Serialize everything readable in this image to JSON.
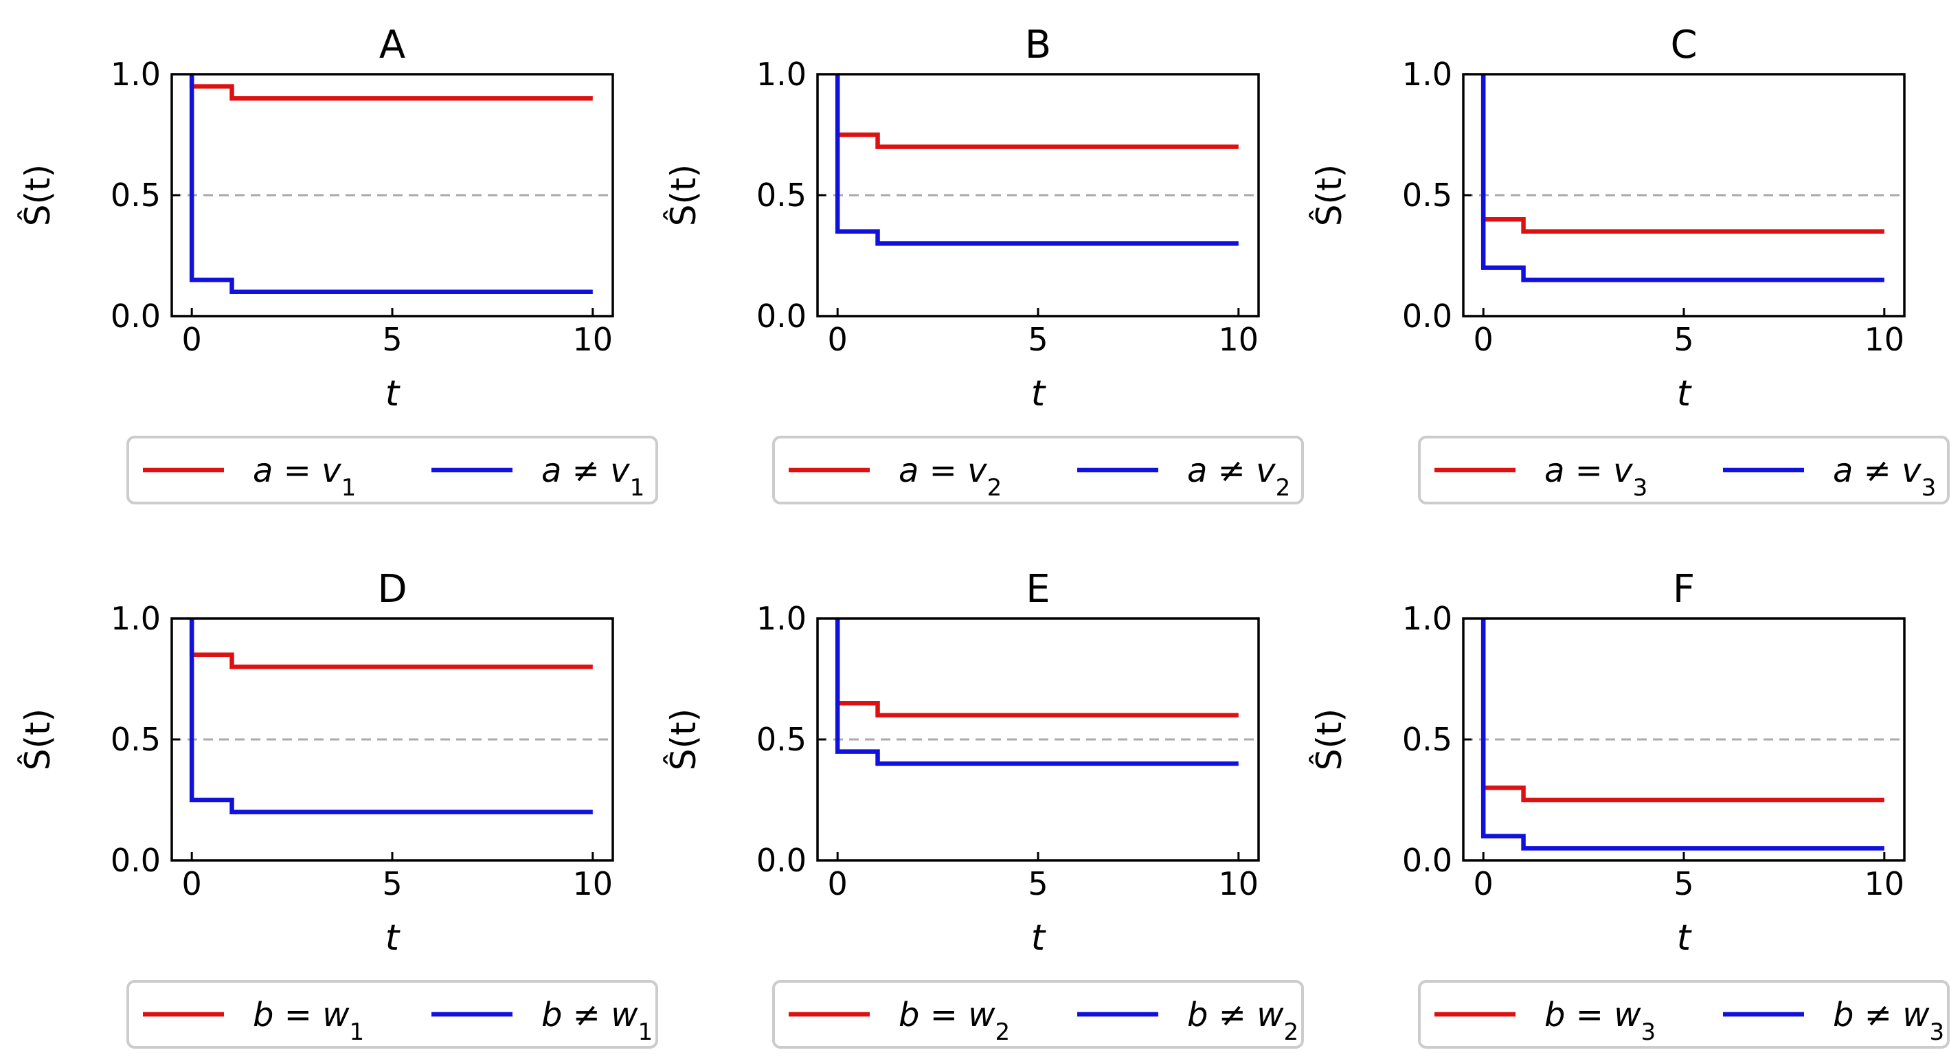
{
  "chart_data": [
    {
      "type": "line",
      "step": true,
      "title": "A",
      "xlabel": "t",
      "ylabel": "Ŝ(t)",
      "xlim": [
        -0.5,
        10.5
      ],
      "ylim": [
        0,
        1
      ],
      "xticks": [
        0,
        5,
        10
      ],
      "xtick_labels": [
        "0",
        "5",
        "10"
      ],
      "yticks": [
        0,
        0.5,
        1
      ],
      "ytick_labels": [
        "0.0",
        "0.5",
        "1.0"
      ],
      "reference_line": 0.5,
      "legend_position": "below",
      "series": [
        {
          "name": "a = v1",
          "legend_var": "a",
          "legend_op": "=",
          "legend_base": "v",
          "legend_sub": "1",
          "color": "#dd1111",
          "x": [
            0,
            1,
            10
          ],
          "y": [
            0.95,
            0.9,
            0.9
          ]
        },
        {
          "name": "a ≠ v1",
          "legend_var": "a",
          "legend_op": "≠",
          "legend_base": "v",
          "legend_sub": "1",
          "color": "#1111dd",
          "x": [
            0,
            1,
            10
          ],
          "y": [
            0.15,
            0.1,
            0.1
          ]
        }
      ]
    },
    {
      "type": "line",
      "step": true,
      "title": "B",
      "xlabel": "t",
      "ylabel": "Ŝ(t)",
      "xlim": [
        -0.5,
        10.5
      ],
      "ylim": [
        0,
        1
      ],
      "xticks": [
        0,
        5,
        10
      ],
      "xtick_labels": [
        "0",
        "5",
        "10"
      ],
      "yticks": [
        0,
        0.5,
        1
      ],
      "ytick_labels": [
        "0.0",
        "0.5",
        "1.0"
      ],
      "reference_line": 0.5,
      "legend_position": "below",
      "series": [
        {
          "name": "a = v2",
          "legend_var": "a",
          "legend_op": "=",
          "legend_base": "v",
          "legend_sub": "2",
          "color": "#dd1111",
          "x": [
            0,
            1,
            10
          ],
          "y": [
            0.75,
            0.7,
            0.7
          ]
        },
        {
          "name": "a ≠ v2",
          "legend_var": "a",
          "legend_op": "≠",
          "legend_base": "v",
          "legend_sub": "2",
          "color": "#1111dd",
          "x": [
            0,
            1,
            10
          ],
          "y": [
            0.35,
            0.3,
            0.3
          ]
        }
      ]
    },
    {
      "type": "line",
      "step": true,
      "title": "C",
      "xlabel": "t",
      "ylabel": "Ŝ(t)",
      "xlim": [
        -0.5,
        10.5
      ],
      "ylim": [
        0,
        1
      ],
      "xticks": [
        0,
        5,
        10
      ],
      "xtick_labels": [
        "0",
        "5",
        "10"
      ],
      "yticks": [
        0,
        0.5,
        1
      ],
      "ytick_labels": [
        "0.0",
        "0.5",
        "1.0"
      ],
      "reference_line": 0.5,
      "legend_position": "below",
      "series": [
        {
          "name": "a = v3",
          "legend_var": "a",
          "legend_op": "=",
          "legend_base": "v",
          "legend_sub": "3",
          "color": "#dd1111",
          "x": [
            0,
            1,
            10
          ],
          "y": [
            0.4,
            0.35,
            0.35
          ]
        },
        {
          "name": "a ≠ v3",
          "legend_var": "a",
          "legend_op": "≠",
          "legend_base": "v",
          "legend_sub": "3",
          "color": "#1111dd",
          "x": [
            0,
            1,
            10
          ],
          "y": [
            0.2,
            0.15,
            0.15
          ]
        }
      ]
    },
    {
      "type": "line",
      "step": true,
      "title": "D",
      "xlabel": "t",
      "ylabel": "Ŝ(t)",
      "xlim": [
        -0.5,
        10.5
      ],
      "ylim": [
        0,
        1
      ],
      "xticks": [
        0,
        5,
        10
      ],
      "xtick_labels": [
        "0",
        "5",
        "10"
      ],
      "yticks": [
        0,
        0.5,
        1
      ],
      "ytick_labels": [
        "0.0",
        "0.5",
        "1.0"
      ],
      "reference_line": 0.5,
      "legend_position": "below",
      "series": [
        {
          "name": "b = w1",
          "legend_var": "b",
          "legend_op": "=",
          "legend_base": "w",
          "legend_sub": "1",
          "color": "#dd1111",
          "x": [
            0,
            1,
            10
          ],
          "y": [
            0.85,
            0.8,
            0.8
          ]
        },
        {
          "name": "b ≠ w1",
          "legend_var": "b",
          "legend_op": "≠",
          "legend_base": "w",
          "legend_sub": "1",
          "color": "#1111dd",
          "x": [
            0,
            1,
            10
          ],
          "y": [
            0.25,
            0.2,
            0.2
          ]
        }
      ]
    },
    {
      "type": "line",
      "step": true,
      "title": "E",
      "xlabel": "t",
      "ylabel": "Ŝ(t)",
      "xlim": [
        -0.5,
        10.5
      ],
      "ylim": [
        0,
        1
      ],
      "xticks": [
        0,
        5,
        10
      ],
      "xtick_labels": [
        "0",
        "5",
        "10"
      ],
      "yticks": [
        0,
        0.5,
        1
      ],
      "ytick_labels": [
        "0.0",
        "0.5",
        "1.0"
      ],
      "reference_line": 0.5,
      "legend_position": "below",
      "series": [
        {
          "name": "b = w2",
          "legend_var": "b",
          "legend_op": "=",
          "legend_base": "w",
          "legend_sub": "2",
          "color": "#dd1111",
          "x": [
            0,
            1,
            10
          ],
          "y": [
            0.65,
            0.6,
            0.6
          ]
        },
        {
          "name": "b ≠ w2",
          "legend_var": "b",
          "legend_op": "≠",
          "legend_base": "w",
          "legend_sub": "2",
          "color": "#1111dd",
          "x": [
            0,
            1,
            10
          ],
          "y": [
            0.45,
            0.4,
            0.4
          ]
        }
      ]
    },
    {
      "type": "line",
      "step": true,
      "title": "F",
      "xlabel": "t",
      "ylabel": "Ŝ(t)",
      "xlim": [
        -0.5,
        10.5
      ],
      "ylim": [
        0,
        1
      ],
      "xticks": [
        0,
        5,
        10
      ],
      "xtick_labels": [
        "0",
        "5",
        "10"
      ],
      "yticks": [
        0,
        0.5,
        1
      ],
      "ytick_labels": [
        "0.0",
        "0.5",
        "1.0"
      ],
      "reference_line": 0.5,
      "legend_position": "below",
      "series": [
        {
          "name": "b = w3",
          "legend_var": "b",
          "legend_op": "=",
          "legend_base": "w",
          "legend_sub": "3",
          "color": "#dd1111",
          "x": [
            0,
            1,
            10
          ],
          "y": [
            0.3,
            0.25,
            0.25
          ]
        },
        {
          "name": "b ≠ w3",
          "legend_var": "b",
          "legend_op": "≠",
          "legend_base": "w",
          "legend_sub": "3",
          "color": "#1111dd",
          "x": [
            0,
            1,
            10
          ],
          "y": [
            0.1,
            0.05,
            0.05
          ]
        }
      ]
    }
  ]
}
